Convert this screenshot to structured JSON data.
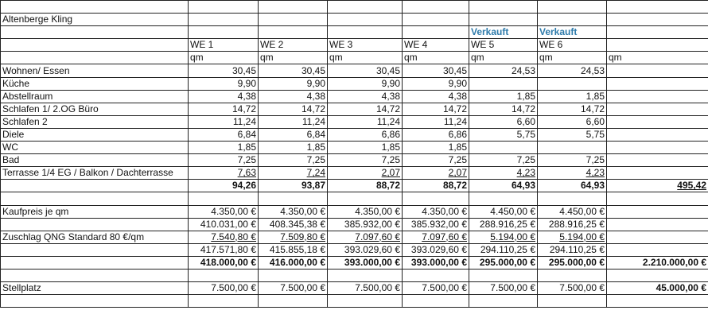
{
  "title": "Altenberge Kling",
  "status": [
    "",
    "",
    "",
    "",
    "Verkauft",
    "Verkauft",
    ""
  ],
  "units": [
    "WE 1",
    "WE 2",
    "WE 3",
    "WE 4",
    "WE 5",
    "WE 6",
    ""
  ],
  "unit_label": [
    "qm",
    "qm",
    "qm",
    "qm",
    "qm",
    "qm",
    "qm"
  ],
  "rooms": [
    {
      "label": "Wohnen/ Essen",
      "values": [
        "30,45",
        "30,45",
        "30,45",
        "30,45",
        "24,53",
        "24,53",
        ""
      ]
    },
    {
      "label": "Küche",
      "values": [
        "9,90",
        "9,90",
        "9,90",
        "9,90",
        "",
        "",
        ""
      ]
    },
    {
      "label": "Abstellraum",
      "values": [
        "4,38",
        "4,38",
        "4,38",
        "4,38",
        "1,85",
        "1,85",
        ""
      ]
    },
    {
      "label": "Schlafen 1/ 2.OG Büro",
      "values": [
        "14,72",
        "14,72",
        "14,72",
        "14,72",
        "14,72",
        "14,72",
        ""
      ]
    },
    {
      "label": "Schlafen 2",
      "values": [
        "11,24",
        "11,24",
        "11,24",
        "11,24",
        "6,60",
        "6,60",
        ""
      ]
    },
    {
      "label": "Diele",
      "values": [
        "6,84",
        "6,84",
        "6,86",
        "6,86",
        "5,75",
        "5,75",
        ""
      ]
    },
    {
      "label": "WC",
      "values": [
        "1,85",
        "1,85",
        "1,85",
        "1,85",
        "",
        "",
        ""
      ]
    },
    {
      "label": "Bad",
      "values": [
        "7,25",
        "7,25",
        "7,25",
        "7,25",
        "7,25",
        "7,25",
        ""
      ]
    },
    {
      "label": "Terrasse 1/4 EG / Balkon / Dachterrasse",
      "values": [
        "7,63",
        "7,24",
        "2,07",
        "2,07",
        "4,23",
        "4,23",
        ""
      ]
    }
  ],
  "area_total": {
    "label": "",
    "values": [
      "94,26",
      "93,87",
      "88,72",
      "88,72",
      "64,93",
      "64,93",
      "495,42"
    ]
  },
  "price_per_qm": {
    "label": "Kaufpreis je qm",
    "values": [
      "4.350,00 €",
      "4.350,00 €",
      "4.350,00 €",
      "4.350,00 €",
      "4.450,00 €",
      "4.450,00 €",
      ""
    ]
  },
  "base_price": {
    "label": "",
    "values": [
      "410.031,00 €",
      "408.345,38 €",
      "385.932,00 €",
      "385.932,00 €",
      "288.916,25 €",
      "288.916,25 €",
      ""
    ]
  },
  "qng": {
    "label": "Zuschlag QNG Standard 80 €/qm",
    "values": [
      "7.540,80 €",
      "7.509,80 €",
      "7.097,60 €",
      "7.097,60 €",
      "5.194,00 €",
      "5.194,00 €",
      ""
    ]
  },
  "subtotal": {
    "label": "",
    "values": [
      "417.571,80 €",
      "415.855,18 €",
      "393.029,60 €",
      "393.029,60 €",
      "294.110,25 €",
      "294.110,25 €",
      ""
    ]
  },
  "final_price": {
    "label": "",
    "values": [
      "418.000,00 €",
      "416.000,00 €",
      "393.000,00 €",
      "393.000,00 €",
      "295.000,00 €",
      "295.000,00 €",
      "2.210.000,00 €"
    ]
  },
  "parking": {
    "label": "Stellplatz",
    "values": [
      "7.500,00 €",
      "7.500,00 €",
      "7.500,00 €",
      "7.500,00 €",
      "7.500,00 €",
      "7.500,00 €",
      "45.000,00 €"
    ]
  },
  "colors": {
    "sold": "#2e7bab",
    "grid": "#222222"
  }
}
